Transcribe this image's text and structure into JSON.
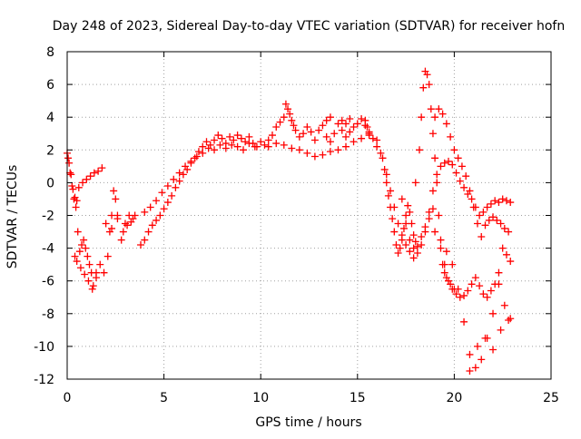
{
  "chart_data": {
    "type": "scatter",
    "title": "Day 248 of 2023, Sidereal Day-to-day VTEC variation (SDTVAR) for receiver hofn",
    "xlabel": "GPS time / hours",
    "ylabel": "SDTVAR / TECUs",
    "xlim": [
      0,
      25
    ],
    "ylim": [
      -12,
      8
    ],
    "xticks": [
      0,
      5,
      10,
      15,
      20,
      25
    ],
    "yticks": [
      -12,
      -10,
      -8,
      -6,
      -4,
      -2,
      0,
      2,
      4,
      6,
      8
    ],
    "grid": true,
    "marker": "+",
    "series": [
      {
        "name": "SDTVAR",
        "color": "#ff0000",
        "x": [
          0.0,
          0.1,
          0.2,
          0.3,
          0.4,
          0.5,
          0.6,
          0.8,
          1.0,
          1.2,
          1.4,
          1.6,
          1.8,
          0.05,
          0.15,
          0.25,
          0.35,
          0.45,
          0.55,
          0.65,
          0.75,
          0.85,
          0.95,
          1.05,
          1.15,
          1.25,
          1.35,
          1.5,
          1.7,
          0.4,
          0.5,
          0.7,
          0.9,
          1.1,
          1.3,
          1.5,
          1.9,
          2.1,
          2.2,
          2.3,
          2.4,
          2.5,
          2.6,
          2.8,
          3.0,
          3.2,
          3.4,
          2.0,
          2.3,
          2.6,
          2.9,
          3.1,
          3.3,
          3.5,
          3.8,
          4.0,
          4.2,
          4.4,
          4.6,
          4.8,
          5.0,
          5.2,
          5.4,
          5.6,
          5.8,
          6.0,
          6.2,
          6.4,
          6.6,
          6.8,
          7.0,
          7.2,
          7.4,
          7.6,
          7.8,
          8.0,
          8.2,
          8.4,
          8.6,
          8.8,
          9.0,
          9.2,
          9.4,
          9.6,
          9.8,
          10.0,
          4.0,
          4.3,
          4.6,
          4.9,
          5.2,
          5.5,
          5.8,
          6.1,
          6.4,
          6.7,
          7.0,
          7.3,
          7.6,
          7.9,
          8.2,
          8.5,
          8.8,
          9.1,
          9.4,
          9.7,
          10.2,
          10.4,
          10.6,
          10.8,
          11.0,
          11.2,
          11.4,
          11.6,
          11.8,
          12.0,
          12.2,
          12.4,
          12.6,
          12.8,
          13.0,
          13.2,
          13.4,
          13.6,
          13.8,
          14.0,
          14.2,
          14.4,
          14.6,
          14.8,
          15.0,
          15.2,
          15.4,
          15.6,
          15.8,
          16.0,
          16.2,
          10.4,
          10.8,
          11.2,
          11.6,
          12.0,
          12.4,
          12.8,
          13.2,
          13.6,
          14.0,
          14.4,
          14.8,
          15.2,
          15.6,
          16.0,
          11.3,
          11.5,
          11.7,
          13.4,
          13.6,
          14.2,
          14.4,
          14.6,
          15.4,
          15.5,
          15.6,
          16.3,
          16.4,
          16.5,
          16.6,
          16.7,
          16.8,
          16.9,
          17.0,
          17.1,
          17.2,
          17.3,
          17.4,
          17.5,
          17.6,
          17.7,
          17.8,
          17.9,
          18.0,
          16.5,
          16.7,
          16.9,
          17.1,
          17.3,
          17.5,
          17.7,
          17.9,
          18.1,
          18.3,
          18.5,
          18.7,
          18.9,
          18.0,
          18.2,
          18.3,
          18.4,
          18.5,
          18.6,
          18.7,
          18.8,
          18.9,
          19.0,
          19.1,
          19.2,
          19.3,
          19.4,
          19.5,
          19.6,
          19.8,
          20.0,
          17.3,
          17.5,
          17.7,
          17.9,
          18.1,
          18.3,
          18.5,
          18.7,
          18.9,
          19.1,
          19.3,
          19.5,
          19.7,
          19.9,
          20.1,
          20.3,
          20.5,
          20.7,
          20.9,
          21.1,
          21.3,
          21.5,
          21.7,
          21.9,
          22.1,
          22.3,
          22.5,
          22.7,
          22.9,
          19.0,
          19.2,
          19.4,
          19.6,
          19.8,
          20.0,
          20.2,
          20.4,
          20.6,
          20.8,
          21.0,
          21.2,
          21.4,
          21.6,
          21.8,
          22.0,
          22.2,
          22.4,
          22.6,
          22.8,
          19.5,
          19.7,
          19.9,
          20.1,
          20.3,
          20.5,
          20.7,
          20.9,
          21.1,
          21.3,
          21.5,
          21.7,
          21.9,
          22.1,
          22.3,
          22.5,
          22.7,
          22.9,
          19.0,
          19.3,
          19.6,
          19.9,
          20.2,
          20.5,
          20.8,
          21.1,
          21.4,
          21.7,
          22.0,
          22.3,
          22.6,
          22.9,
          20.8,
          21.2,
          21.6,
          22.0,
          22.4,
          22.8
        ],
        "y": [
          1.8,
          1.2,
          0.5,
          -0.4,
          -0.9,
          -1.1,
          -0.3,
          0.0,
          0.2,
          0.4,
          0.6,
          0.7,
          0.9,
          1.5,
          0.6,
          -0.2,
          -1.0,
          -1.5,
          -3.0,
          -4.2,
          -3.8,
          -3.5,
          -4.0,
          -4.5,
          -5.0,
          -5.5,
          -6.3,
          -5.8,
          -5.0,
          -4.5,
          -4.8,
          -5.2,
          -5.6,
          -6.0,
          -6.5,
          -5.5,
          -5.5,
          -4.5,
          -3.0,
          -2.0,
          -0.5,
          -1.0,
          -2.0,
          -3.5,
          -2.5,
          -2.0,
          -2.2,
          -2.5,
          -2.8,
          -2.2,
          -3.0,
          -2.6,
          -2.4,
          -2.0,
          -3.8,
          -3.5,
          -3.0,
          -2.6,
          -2.3,
          -2.0,
          -1.6,
          -1.2,
          -0.8,
          -0.3,
          0.1,
          0.5,
          0.8,
          1.2,
          1.5,
          1.9,
          2.2,
          2.5,
          2.3,
          2.6,
          2.9,
          2.7,
          2.4,
          2.8,
          2.6,
          2.9,
          2.7,
          2.5,
          2.8,
          2.4,
          2.2,
          2.5,
          -1.8,
          -1.5,
          -1.1,
          -0.6,
          -0.2,
          0.2,
          0.6,
          1.0,
          1.3,
          1.6,
          1.8,
          2.1,
          2.0,
          2.3,
          2.1,
          2.3,
          2.2,
          2.0,
          2.4,
          2.2,
          2.3,
          2.6,
          2.9,
          3.4,
          3.7,
          4.0,
          4.5,
          3.8,
          3.2,
          2.8,
          3.0,
          3.4,
          3.1,
          2.6,
          3.2,
          3.5,
          2.8,
          2.5,
          3.0,
          3.6,
          3.2,
          2.8,
          3.1,
          3.4,
          3.6,
          3.9,
          3.5,
          3.1,
          2.7,
          2.2,
          1.8,
          2.2,
          2.4,
          2.3,
          2.1,
          2.0,
          1.8,
          1.6,
          1.7,
          1.9,
          2.0,
          2.2,
          2.5,
          2.7,
          2.9,
          2.6,
          4.8,
          4.2,
          3.5,
          3.8,
          4.0,
          3.8,
          3.6,
          3.9,
          3.8,
          3.4,
          3.0,
          1.5,
          0.8,
          0.0,
          -0.8,
          -1.5,
          -2.2,
          -3.0,
          -3.8,
          -4.3,
          -4.0,
          -3.5,
          -2.8,
          -2.0,
          -1.4,
          -1.8,
          -2.5,
          -3.2,
          -3.6,
          0.5,
          -0.5,
          -1.5,
          -2.5,
          -3.2,
          -3.8,
          -4.2,
          -4.6,
          -3.9,
          -3.3,
          -2.7,
          -2.2,
          -1.6,
          0.0,
          2.0,
          4.0,
          5.8,
          6.8,
          6.6,
          6.0,
          4.5,
          3.0,
          1.5,
          0.0,
          -2.0,
          -4.0,
          -5.0,
          -5.5,
          -5.8,
          -6.2,
          -6.5,
          -1.0,
          -2.5,
          -3.5,
          -4.0,
          -4.3,
          -3.8,
          -3.0,
          -1.8,
          -0.5,
          0.5,
          1.0,
          1.2,
          1.3,
          1.1,
          0.6,
          0.1,
          -0.3,
          -0.7,
          -1.0,
          -1.5,
          -2.0,
          -1.8,
          -1.5,
          -1.3,
          -1.1,
          -1.2,
          -1.0,
          -1.1,
          -1.2,
          4.0,
          4.5,
          4.2,
          3.6,
          2.8,
          2.0,
          1.5,
          1.0,
          0.4,
          -0.5,
          -1.5,
          -2.5,
          -3.3,
          -2.6,
          -2.3,
          -2.1,
          -2.3,
          -2.5,
          -2.8,
          -3.0,
          -5.0,
          -6.0,
          -6.5,
          -6.8,
          -7.0,
          -6.9,
          -6.6,
          -6.2,
          -5.8,
          -6.3,
          -6.8,
          -7.0,
          -6.6,
          -6.2,
          -5.5,
          -4.0,
          -4.4,
          -4.8,
          -3.0,
          -3.5,
          -4.2,
          -5.0,
          -6.5,
          -8.5,
          -10.5,
          -11.3,
          -10.8,
          -9.5,
          -8.0,
          -6.2,
          -7.5,
          -8.3,
          -11.5,
          -10.0,
          -9.5,
          -10.2,
          -9.0,
          -8.4
        ]
      }
    ]
  }
}
